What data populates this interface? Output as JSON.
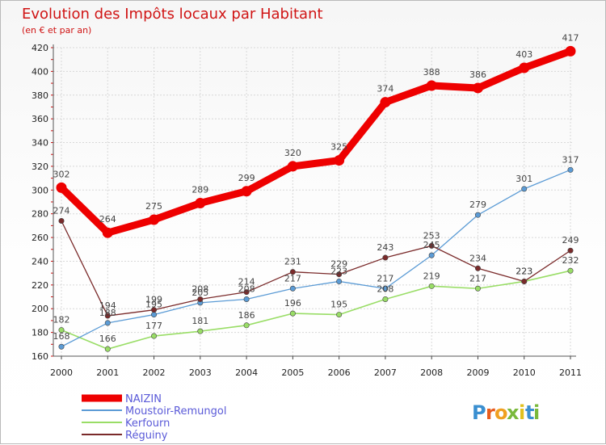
{
  "chart_data": {
    "type": "line",
    "title": "Evolution des Impôts locaux par Habitant",
    "subtitle": "(en € et par an)",
    "xlabel": "",
    "ylabel": "",
    "ylim": [
      160,
      420
    ],
    "yticks": [
      160,
      180,
      200,
      220,
      240,
      260,
      280,
      300,
      320,
      340,
      360,
      380,
      400,
      420
    ],
    "categories": [
      "2000",
      "2001",
      "2002",
      "2003",
      "2004",
      "2005",
      "2006",
      "2007",
      "2008",
      "2009",
      "2010",
      "2011"
    ],
    "grid": true,
    "legend_position": "bottom-left",
    "series": [
      {
        "name": "NAIZIN",
        "color": "#ee0000",
        "values": [
          302,
          264,
          275,
          289,
          299,
          320,
          325,
          374,
          388,
          386,
          403,
          417
        ]
      },
      {
        "name": "Moustoir-Remungol",
        "color": "#5b9bd5",
        "values": [
          168,
          188,
          195,
          205,
          208,
          217,
          223,
          217,
          245,
          279,
          301,
          317
        ]
      },
      {
        "name": "Kerfourn",
        "color": "#99dd66",
        "values": [
          182,
          166,
          177,
          181,
          186,
          196,
          195,
          208,
          219,
          217,
          223,
          232
        ]
      },
      {
        "name": "Réguiny",
        "color": "#7a2a2a",
        "values": [
          274,
          194,
          199,
          208,
          214,
          231,
          229,
          243,
          253,
          234,
          223,
          249
        ]
      }
    ]
  },
  "brand": {
    "text": "Proxiti",
    "letters": [
      "P",
      "r",
      "o",
      "x",
      "i",
      "t",
      "i"
    ],
    "colors": [
      "#3a8fd0",
      "#e85c1c",
      "#f0a020",
      "#7ab93c",
      "#e0c020",
      "#3a8fd0",
      "#7ab93c"
    ]
  }
}
